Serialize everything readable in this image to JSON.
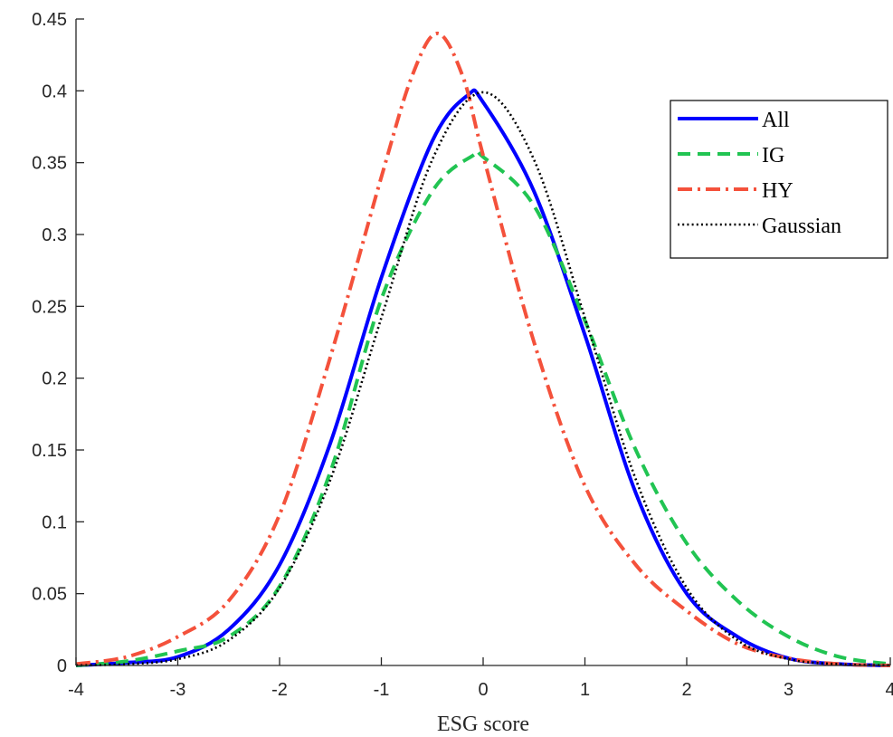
{
  "chart_data": {
    "type": "line",
    "title": "",
    "xlabel": "ESG score",
    "ylabel": "",
    "xlim": [
      -4,
      4
    ],
    "ylim": [
      0,
      0.45
    ],
    "xticks": [
      "-4",
      "-3",
      "-2",
      "-1",
      "0",
      "1",
      "2",
      "3",
      "4"
    ],
    "yticks": [
      "0",
      "0.05",
      "0.1",
      "0.15",
      "0.2",
      "0.25",
      "0.3",
      "0.35",
      "0.4",
      "0.45"
    ],
    "grid": false,
    "legend_position": "top-right",
    "series": [
      {
        "name": "All",
        "color": "#0000ff",
        "style": "solid",
        "x": [
          -4,
          -3.5,
          -3,
          -2.5,
          -2,
          -1.5,
          -1,
          -0.5,
          -0.15,
          0,
          0.5,
          1,
          1.5,
          2,
          2.5,
          3,
          3.5,
          4
        ],
        "y": [
          0.0,
          0.002,
          0.006,
          0.025,
          0.07,
          0.155,
          0.27,
          0.365,
          0.397,
          0.392,
          0.33,
          0.23,
          0.12,
          0.05,
          0.02,
          0.005,
          0.001,
          0.0
        ]
      },
      {
        "name": "IG",
        "color": "#21c452",
        "style": "dashed",
        "x": [
          -4,
          -3.5,
          -3,
          -2.5,
          -2,
          -1.5,
          -1,
          -0.5,
          -0.1,
          0,
          0.5,
          1,
          1.5,
          2,
          2.5,
          3,
          3.5,
          4
        ],
        "y": [
          0.0,
          0.003,
          0.01,
          0.02,
          0.055,
          0.135,
          0.255,
          0.33,
          0.355,
          0.354,
          0.32,
          0.24,
          0.15,
          0.085,
          0.045,
          0.02,
          0.006,
          0.001
        ]
      },
      {
        "name": "HY",
        "color": "#f4513b",
        "style": "dashdot",
        "x": [
          -4,
          -3.5,
          -3,
          -2.5,
          -2,
          -1.5,
          -1,
          -0.7,
          -0.45,
          -0.2,
          0,
          0.5,
          1,
          1.5,
          2,
          2.5,
          3,
          3.5,
          4
        ],
        "y": [
          0.001,
          0.006,
          0.02,
          0.045,
          0.105,
          0.215,
          0.34,
          0.41,
          0.44,
          0.41,
          0.355,
          0.225,
          0.125,
          0.07,
          0.038,
          0.015,
          0.005,
          0.001,
          0.0
        ]
      },
      {
        "name": "Gaussian",
        "color": "#000000",
        "style": "dotted",
        "x": [
          -4,
          -3.5,
          -3,
          -2.5,
          -2,
          -1.5,
          -1,
          -0.5,
          0,
          0.5,
          1,
          1.5,
          2,
          2.5,
          3,
          3.5,
          4
        ],
        "y": [
          0.0001,
          0.0009,
          0.0044,
          0.0175,
          0.054,
          0.1295,
          0.242,
          0.352,
          0.399,
          0.352,
          0.242,
          0.1295,
          0.054,
          0.0175,
          0.0044,
          0.0009,
          0.0001
        ]
      }
    ]
  }
}
